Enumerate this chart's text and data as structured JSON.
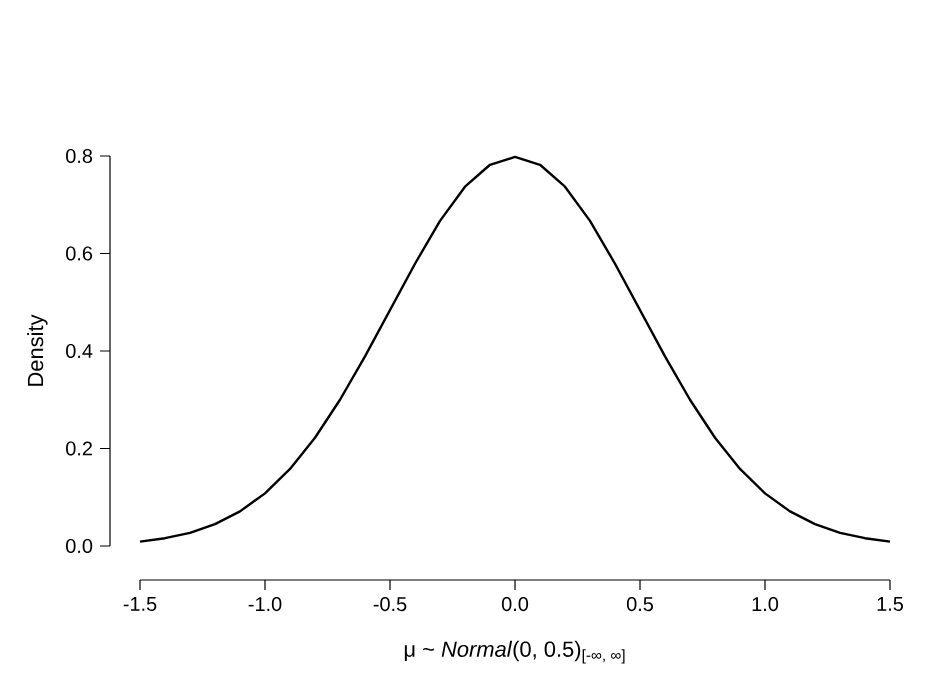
{
  "chart_data": {
    "type": "line",
    "xlabel": "μ ~ *Normal*(0, 0.5)$_{[-∞, ∞]}$",
    "ylabel": "Density",
    "x": [
      -1.5,
      -1.4,
      -1.3,
      -1.2,
      -1.1,
      -1.0,
      -0.9,
      -0.8,
      -0.7,
      -0.6,
      -0.5,
      -0.4,
      -0.3,
      -0.2,
      -0.1,
      0.0,
      0.1,
      0.2,
      0.3,
      0.4,
      0.5,
      0.6,
      0.7,
      0.8,
      0.9,
      1.0,
      1.1,
      1.2,
      1.3,
      1.4,
      1.5
    ],
    "series": [
      {
        "color": "#000000",
        "values": [
          0.009,
          0.016,
          0.027,
          0.045,
          0.071,
          0.108,
          0.158,
          0.222,
          0.3,
          0.389,
          0.484,
          0.579,
          0.667,
          0.737,
          0.782,
          0.798,
          0.782,
          0.737,
          0.667,
          0.579,
          0.484,
          0.389,
          0.3,
          0.222,
          0.158,
          0.108,
          0.071,
          0.045,
          0.027,
          0.016,
          0.009
        ]
      }
    ],
    "xlim": [
      -1.5,
      1.5
    ],
    "ylim": [
      0,
      0.8
    ],
    "xticks": [
      {
        "value": -1.5,
        "label": "-1.5"
      },
      {
        "value": -1.0,
        "label": "-1.0"
      },
      {
        "value": -0.5,
        "label": "-0.5"
      },
      {
        "value": 0.0,
        "label": "0.0"
      },
      {
        "value": 0.5,
        "label": "0.5"
      },
      {
        "value": 1.0,
        "label": "1.0"
      },
      {
        "value": 1.5,
        "label": "1.5"
      }
    ],
    "yticks": [
      {
        "value": 0.0,
        "label": "0.0"
      },
      {
        "value": 0.2,
        "label": "0.2"
      },
      {
        "value": 0.4,
        "label": "0.4"
      },
      {
        "value": 0.6,
        "label": "0.6"
      },
      {
        "value": 0.8,
        "label": "0.8"
      }
    ],
    "grid": false,
    "marker": "none",
    "line_style": "solid"
  }
}
